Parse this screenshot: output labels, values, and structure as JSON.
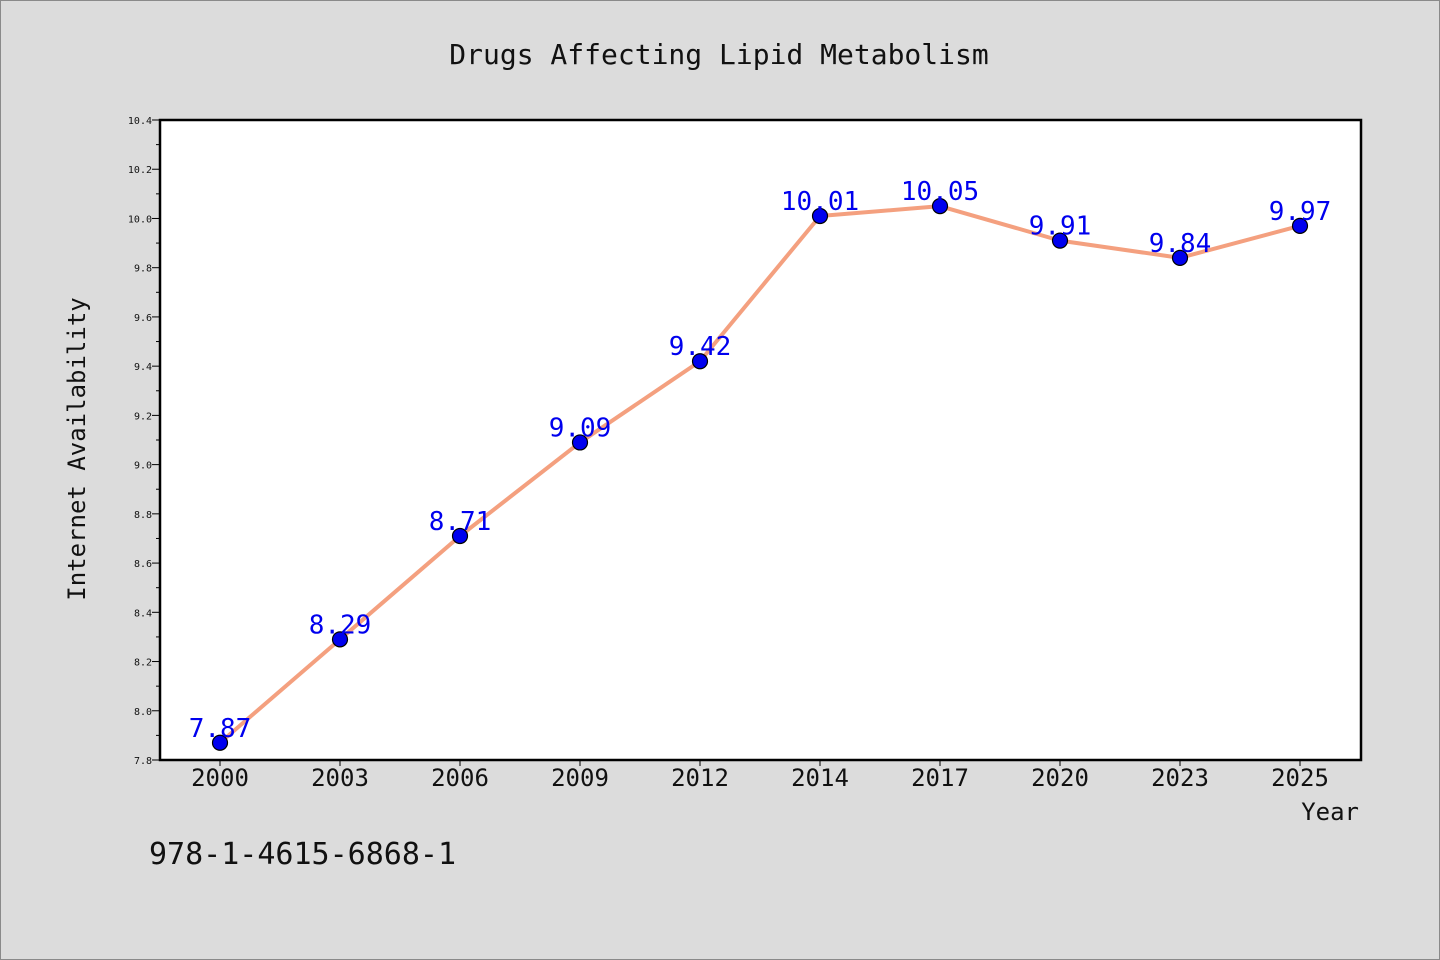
{
  "chart_data": {
    "type": "line",
    "title": "Drugs Affecting Lipid Metabolism",
    "xlabel": "Year",
    "ylabel": "Internet Availability",
    "categories": [
      "2000",
      "2003",
      "2006",
      "2009",
      "2012",
      "2014",
      "2017",
      "2020",
      "2023",
      "2025"
    ],
    "series": [
      {
        "values": [
          7.87,
          8.29,
          8.71,
          9.09,
          9.42,
          10.01,
          10.05,
          9.91,
          9.84,
          9.97
        ],
        "data_labels": [
          "7.87",
          "8.29",
          "8.71",
          "9.09",
          "9.42",
          "10.01",
          "10.05",
          "9.91",
          "9.84",
          "9.97"
        ],
        "line_color": "#f4a07f",
        "marker_color": "#0000ee",
        "label_color": "#0000ee"
      }
    ],
    "ylim": [
      7.8,
      10.4
    ],
    "yticks": [
      "7.8",
      "8.0",
      "8.2",
      "8.4",
      "8.6",
      "8.8",
      "9.0",
      "9.2",
      "9.4",
      "9.6",
      "9.8",
      "10.0",
      "10.2",
      "10.4"
    ],
    "grid": false,
    "legend": "none"
  },
  "footer_text": "978-1-4615-6868-1"
}
